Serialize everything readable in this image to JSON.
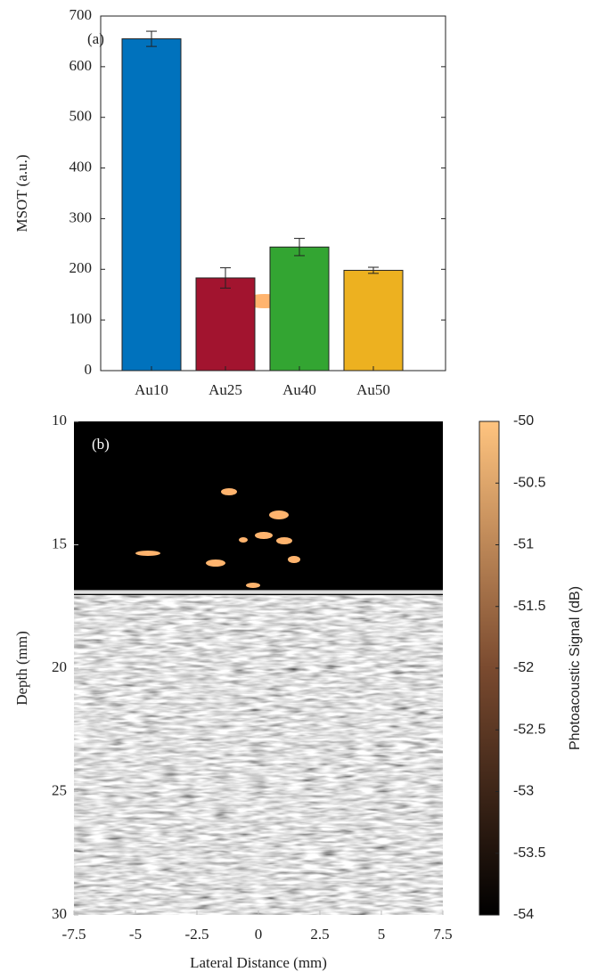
{
  "chart_data": [
    {
      "type": "bar",
      "label": "(a)",
      "ylabel": "MSOT (a.u.)",
      "categories": [
        "Au10",
        "Au25",
        "Au40",
        "Au50"
      ],
      "values": [
        655,
        183,
        244,
        198
      ],
      "errors": [
        15,
        20,
        17,
        6
      ],
      "colors": [
        "#0072bd",
        "#a2142f",
        "#33a532",
        "#edb120"
      ],
      "ylim": [
        0,
        700
      ],
      "yticks": [
        0,
        100,
        200,
        300,
        400,
        500,
        600,
        700
      ]
    },
    {
      "type": "image",
      "label": "(b)",
      "xlabel": "Lateral Distance (mm)",
      "ylabel": "Depth (mm)",
      "xlim": [
        -7.5,
        7.5
      ],
      "xticks": [
        -7.5,
        -5,
        -2.5,
        0,
        2.5,
        5,
        7.5
      ],
      "ylim": [
        10,
        30
      ],
      "yticks": [
        10,
        15,
        20,
        25,
        30
      ],
      "y_reversed": true,
      "colorbar": {
        "label": "Photoacoustic Signal (dB)",
        "lim": [
          -54,
          -50
        ],
        "ticks": [
          -54,
          -53.5,
          -53,
          -52.5,
          -52,
          -51.5,
          -51,
          -50.5,
          -50
        ],
        "colormap": [
          "#000000",
          "#7a4a2f",
          "#ffc47f"
        ]
      }
    }
  ]
}
